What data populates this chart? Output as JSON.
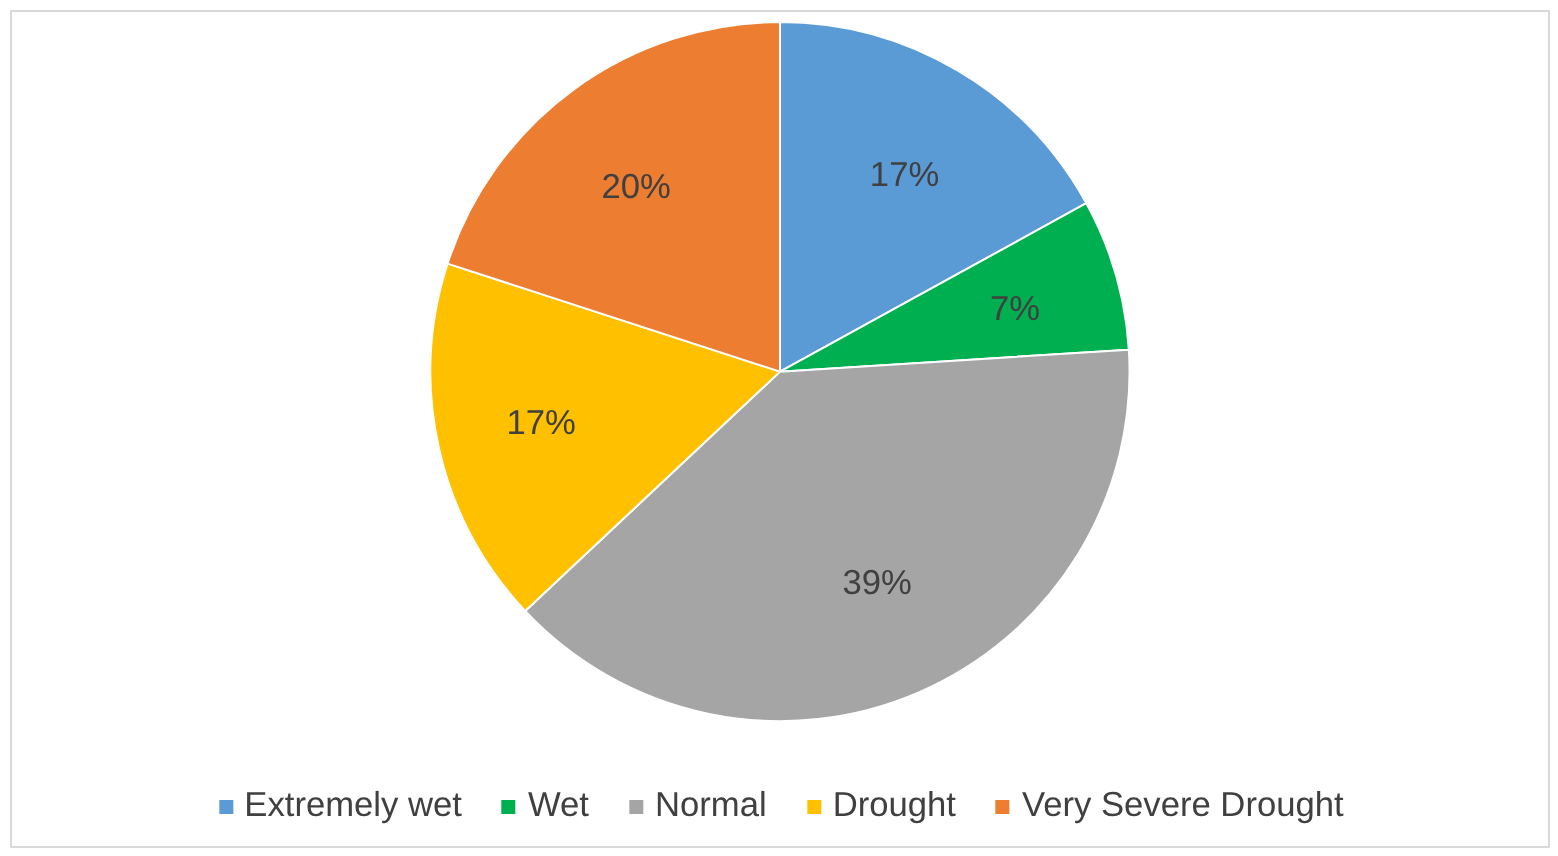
{
  "chart_data": {
    "type": "pie",
    "categories": [
      "Extremely wet",
      "Wet",
      "Normal",
      "Drought",
      "Very Severe Drought"
    ],
    "values": [
      17,
      7,
      39,
      17,
      20
    ],
    "value_labels": [
      "17%",
      "7%",
      "39%",
      "17%",
      "20%"
    ],
    "colors": [
      "#5b9bd5",
      "#00b050",
      "#a5a5a5",
      "#ffc000",
      "#ed7d31"
    ],
    "legend": "bottom"
  }
}
